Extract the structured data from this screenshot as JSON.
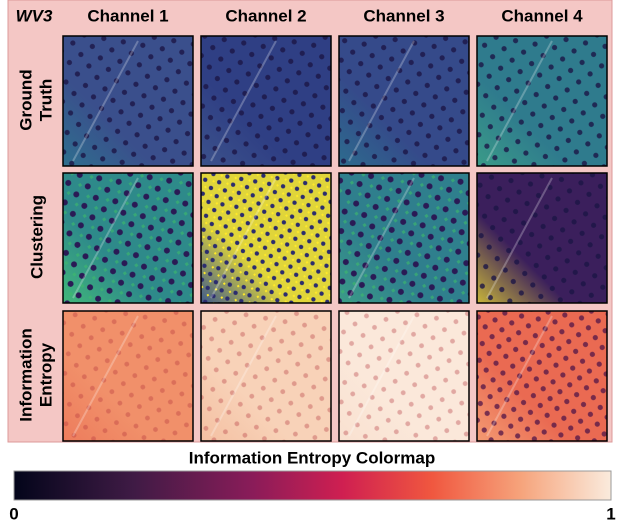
{
  "figure": {
    "corner_label": "WV3",
    "columns": [
      "Channel 1",
      "Channel 2",
      "Channel 3",
      "Channel 4"
    ],
    "rows": [
      [
        "Ground",
        "Truth"
      ],
      [
        "Clustering"
      ],
      [
        "Information",
        "Entropy"
      ]
    ],
    "colorbar": {
      "title": "Information Entropy Colormap",
      "ticks": [
        0,
        1
      ]
    }
  }
}
